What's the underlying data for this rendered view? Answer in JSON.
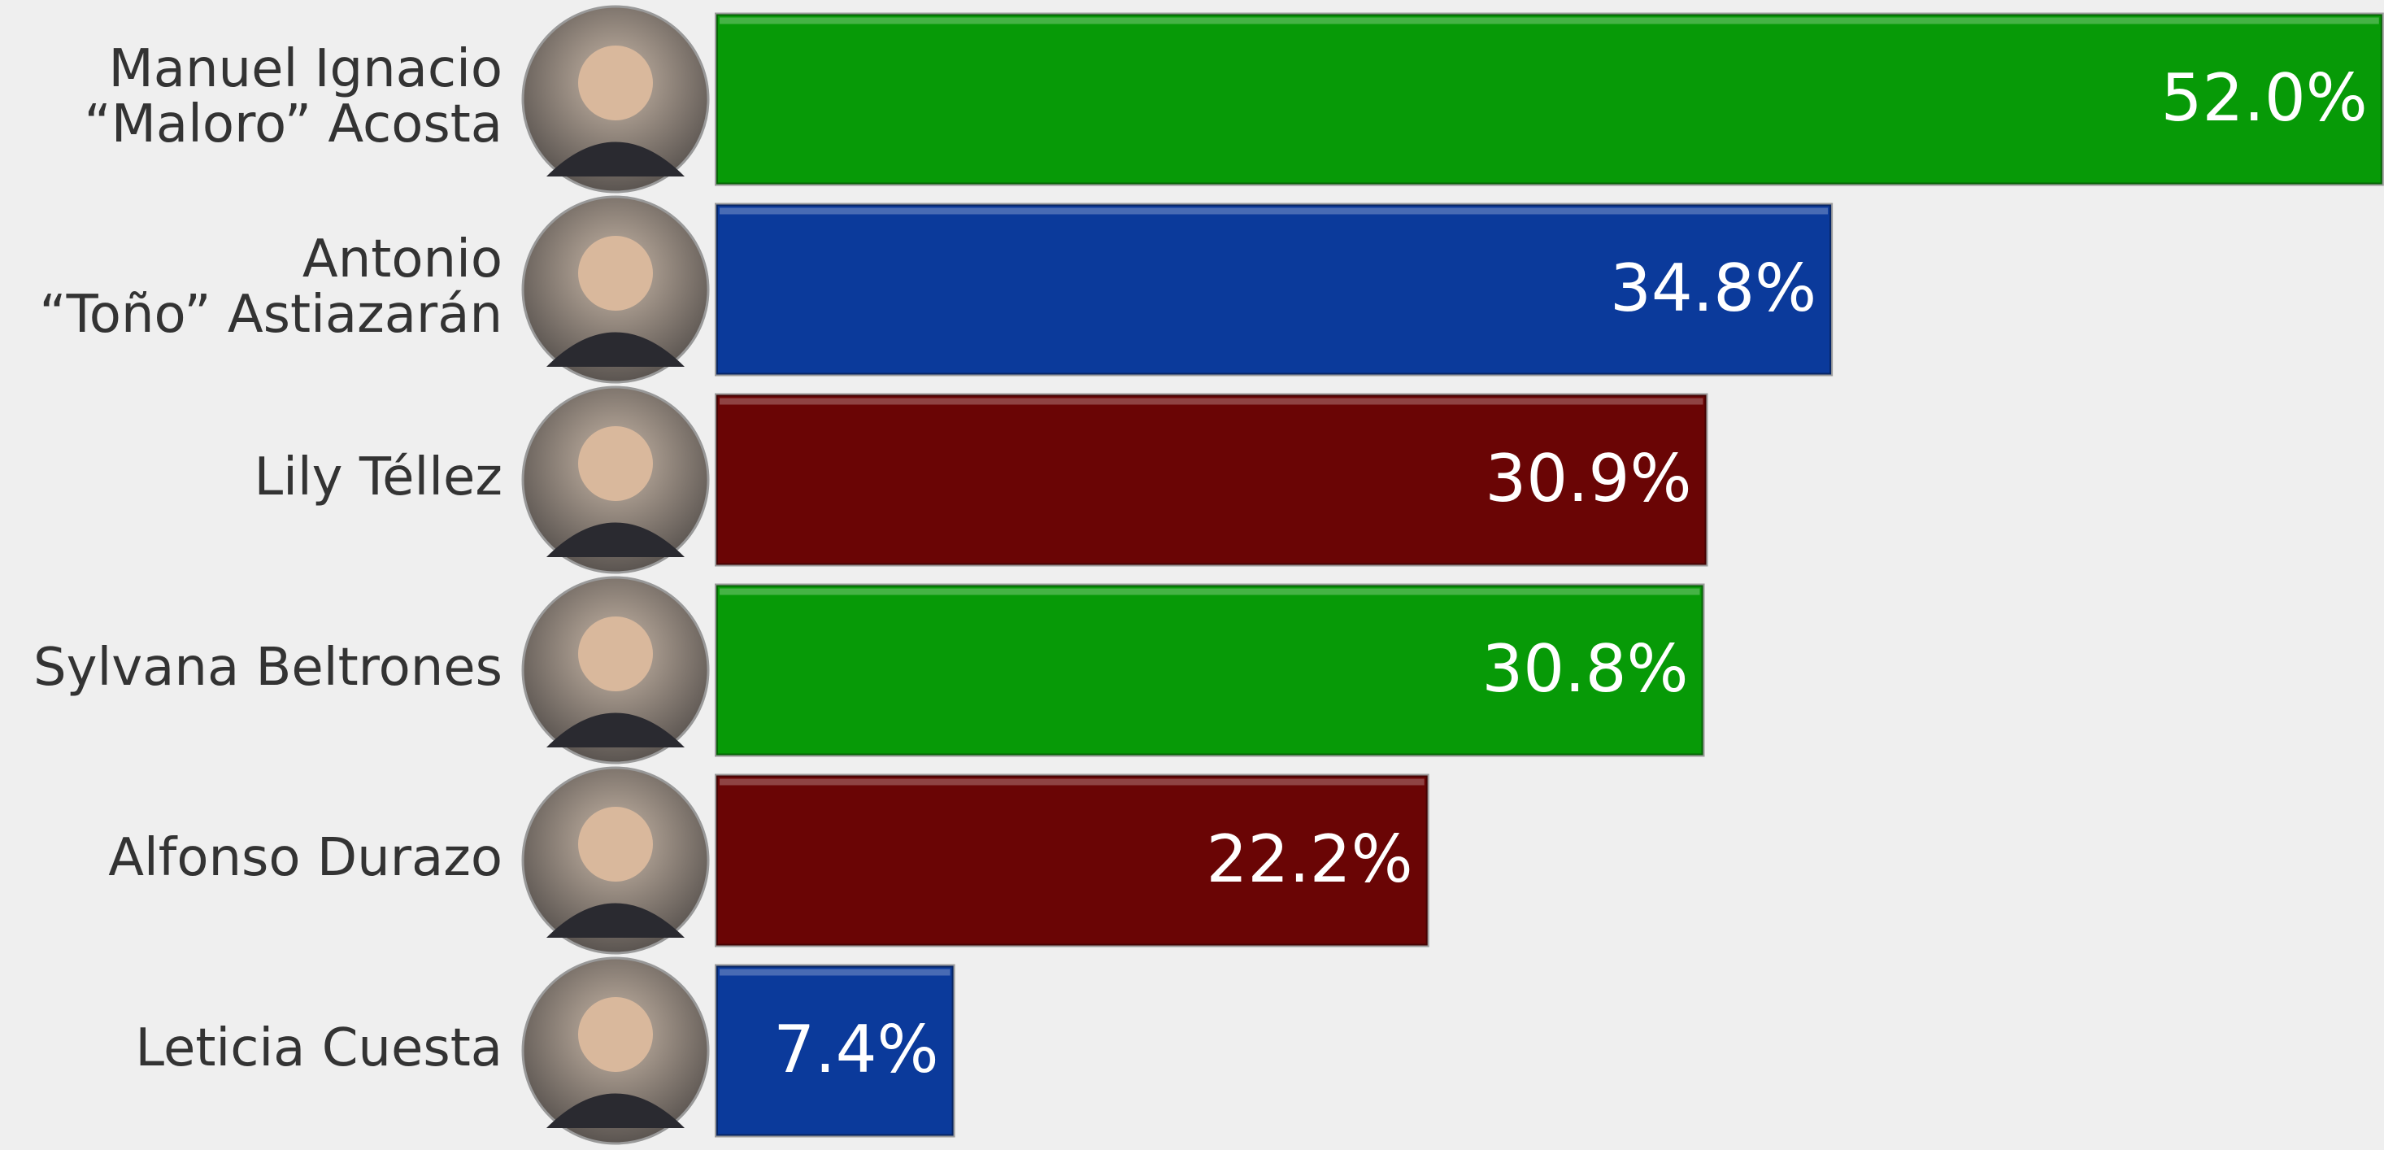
{
  "chart_data": {
    "type": "bar",
    "categories": [
      "Manuel Ignacio\n“Maloro” Acosta",
      "Antonio\n“Toño” Astiazarán",
      "Lily Téllez",
      "Sylvana Beltrones",
      "Alfonso Durazo",
      "Leticia Cuesta"
    ],
    "values": [
      52.0,
      34.8,
      30.9,
      30.8,
      22.2,
      7.4
    ],
    "value_labels": [
      "52.0%",
      "34.8%",
      "30.9%",
      "30.8%",
      "22.2%",
      "7.4%"
    ],
    "colors": [
      "#079a07",
      "#0b3a9b",
      "#6a0505",
      "#079a07",
      "#6a0505",
      "#0b3a9b"
    ]
  }
}
